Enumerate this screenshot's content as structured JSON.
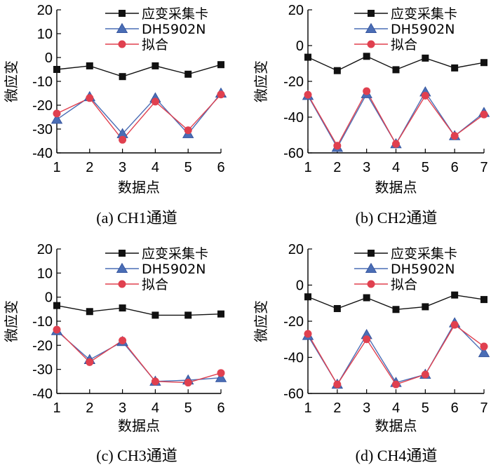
{
  "colors": {
    "daq": "#111111",
    "dh": "#4a6db5",
    "fit": "#e0404f"
  },
  "legend": [
    "应变采集卡",
    "DH5902N",
    "拟合"
  ],
  "chart_data": [
    {
      "type": "line",
      "caption": "(a)  CH1通道",
      "xlabel": "数据点",
      "ylabel": "微应变",
      "x": [
        1,
        2,
        3,
        4,
        5,
        6
      ],
      "xlim": [
        1,
        6
      ],
      "ylim": [
        -40,
        20
      ],
      "yticks": [
        20,
        10,
        0,
        -10,
        -20,
        -30,
        -40
      ],
      "xtick_labels": [
        "1",
        "2",
        "3",
        "4",
        "5",
        "6"
      ],
      "ytick_labels": [
        "20",
        "10",
        "0",
        "-10",
        "-20",
        "-30",
        "-40"
      ],
      "series": [
        {
          "name": "应变采集卡",
          "values": [
            -5,
            -3.5,
            -8,
            -3.5,
            -7,
            -3
          ]
        },
        {
          "name": "DH5902N",
          "values": [
            -26,
            -16.5,
            -32,
            -17,
            -32,
            -15
          ]
        },
        {
          "name": "拟合",
          "values": [
            -23.5,
            -17,
            -34.5,
            -18.5,
            -30.5,
            -15.5
          ]
        }
      ]
    },
    {
      "type": "line",
      "caption": "(b)  CH2通道",
      "xlabel": "数据点",
      "ylabel": "微应变",
      "x": [
        1,
        2,
        3,
        4,
        5,
        6,
        7
      ],
      "xlim": [
        1,
        7
      ],
      "ylim": [
        -60,
        20
      ],
      "yticks": [
        20,
        0,
        -20,
        -40,
        -60
      ],
      "xtick_labels": [
        "1",
        "2",
        "3",
        "4",
        "5",
        "6",
        "7"
      ],
      "ytick_labels": [
        "20",
        "0",
        "-20",
        "-40",
        "-60"
      ],
      "series": [
        {
          "name": "应变采集卡",
          "values": [
            -6.5,
            -14,
            -6,
            -13.5,
            -7,
            -12.5,
            -9.5
          ]
        },
        {
          "name": "DH5902N",
          "values": [
            -28,
            -57,
            -27,
            -55,
            -26,
            -50.5,
            -37.5
          ]
        },
        {
          "name": "拟合",
          "values": [
            -27.5,
            -56,
            -25.5,
            -55,
            -28,
            -50.5,
            -38.5
          ]
        }
      ]
    },
    {
      "type": "line",
      "caption": "(c)  CH3通道",
      "xlabel": "数据点",
      "ylabel": "微应变",
      "x": [
        1,
        2,
        3,
        4,
        5,
        6
      ],
      "xlim": [
        1,
        6
      ],
      "ylim": [
        -40,
        20
      ],
      "yticks": [
        20,
        10,
        0,
        -10,
        -20,
        -30,
        -40
      ],
      "xtick_labels": [
        "1",
        "2",
        "3",
        "4",
        "5",
        "6"
      ],
      "ytick_labels": [
        "20",
        "10",
        "0",
        "-10",
        "-20",
        "-30",
        "-40"
      ],
      "series": [
        {
          "name": "应变采集卡",
          "values": [
            -3.5,
            -6,
            -4.5,
            -7.5,
            -7.5,
            -7
          ]
        },
        {
          "name": "DH5902N",
          "values": [
            -14,
            -26,
            -18.5,
            -35,
            -34.5,
            -33.5
          ]
        },
        {
          "name": "拟合",
          "values": [
            -13.5,
            -27,
            -18,
            -35,
            -35.5,
            -31.5
          ]
        }
      ]
    },
    {
      "type": "line",
      "caption": "(d)  CH4通道",
      "xlabel": "数据点",
      "ylabel": "微应变",
      "x": [
        1,
        2,
        3,
        4,
        5,
        6,
        7
      ],
      "xlim": [
        1,
        7
      ],
      "ylim": [
        -60,
        20
      ],
      "yticks": [
        20,
        0,
        -20,
        -40,
        -60
      ],
      "xtick_labels": [
        "1",
        "2",
        "3",
        "4",
        "5",
        "6",
        "7"
      ],
      "ytick_labels": [
        "20",
        "0",
        "-20",
        "-40",
        "-60"
      ],
      "series": [
        {
          "name": "应变采集卡",
          "values": [
            -6.5,
            -13,
            -7,
            -13.5,
            -12,
            -5.5,
            -8
          ]
        },
        {
          "name": "DH5902N",
          "values": [
            -28,
            -55,
            -27.5,
            -54,
            -49.5,
            -21,
            -37.5
          ]
        },
        {
          "name": "拟合",
          "values": [
            -27,
            -55,
            -30,
            -55,
            -49.5,
            -22,
            -34
          ]
        }
      ]
    }
  ]
}
